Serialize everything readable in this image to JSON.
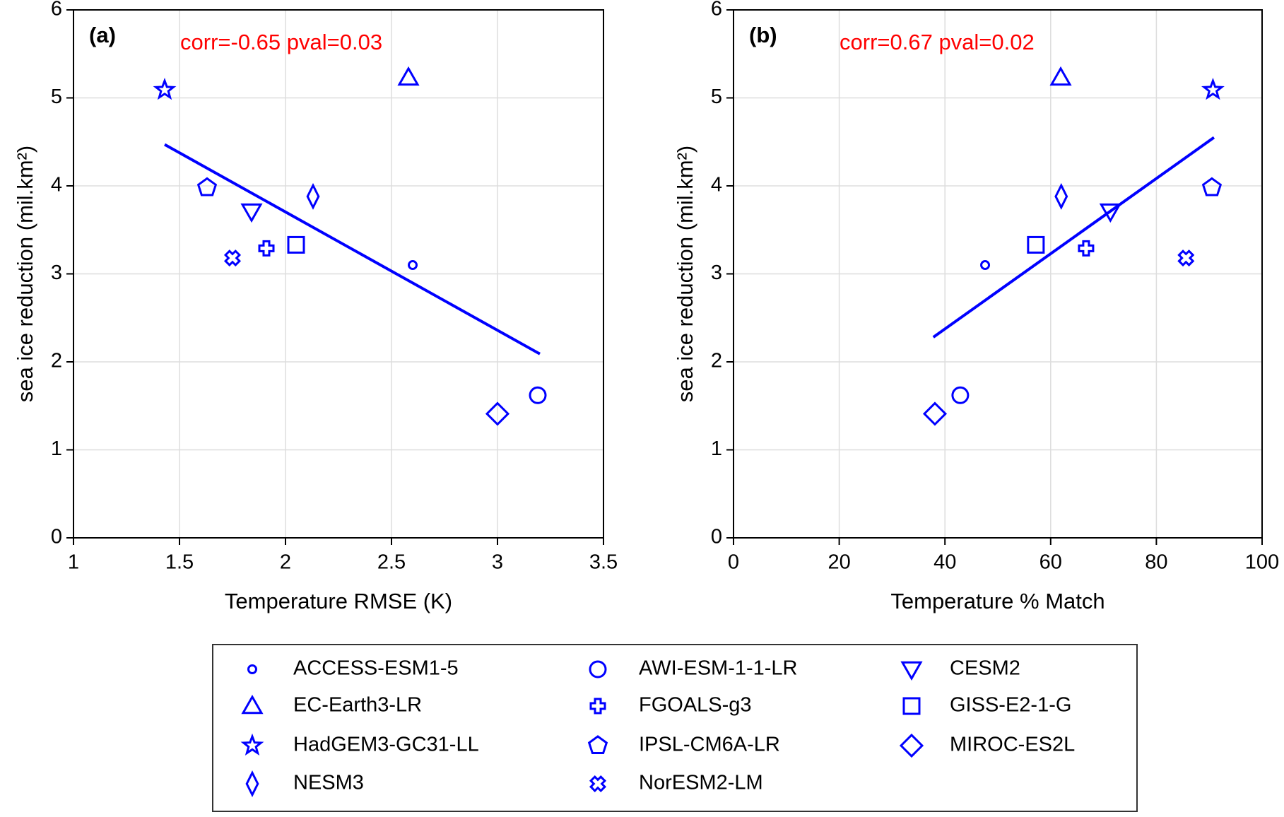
{
  "chart_data": [
    {
      "type": "scatter",
      "panel_label": "(a)",
      "annotation": "corr=-0.65  pval=0.03",
      "xlabel": "Temperature RMSE (K)",
      "ylabel": "sea ice reduction (mil.km²)",
      "xlim": [
        1,
        3.5
      ],
      "xticks": [
        1,
        1.5,
        2,
        2.5,
        3,
        3.5
      ],
      "ylim": [
        0,
        6
      ],
      "yticks": [
        0,
        1,
        2,
        3,
        4,
        5,
        6
      ],
      "grid": true,
      "trendline": {
        "color": "#0000ff",
        "x": [
          1.43,
          3.2
        ],
        "values": [
          4.47,
          2.09
        ]
      },
      "series": [
        {
          "name": "ACCESS-ESM1-5",
          "color": "#0000ff",
          "marker": "small-circle",
          "x": [
            2.6
          ],
          "values": [
            3.1
          ]
        },
        {
          "name": "AWI-ESM-1-1-LR",
          "color": "#0000ff",
          "marker": "circle",
          "x": [
            3.19
          ],
          "values": [
            1.62
          ]
        },
        {
          "name": "CESM2",
          "color": "#0000ff",
          "marker": "triangle-down",
          "x": [
            1.84
          ],
          "values": [
            3.71
          ]
        },
        {
          "name": "EC-Earth3-LR",
          "color": "#0000ff",
          "marker": "triangle-up",
          "x": [
            2.58
          ],
          "values": [
            5.23
          ]
        },
        {
          "name": "FGOALS-g3",
          "color": "#0000ff",
          "marker": "plus",
          "x": [
            1.91
          ],
          "values": [
            3.29
          ]
        },
        {
          "name": "GISS-E2-1-G",
          "color": "#0000ff",
          "marker": "square",
          "x": [
            2.05
          ],
          "values": [
            3.33
          ]
        },
        {
          "name": "HadGEM3-GC31-LL",
          "color": "#0000ff",
          "marker": "star",
          "x": [
            1.43
          ],
          "values": [
            5.09
          ]
        },
        {
          "name": "IPSL-CM6A-LR",
          "color": "#0000ff",
          "marker": "pentagon",
          "x": [
            1.63
          ],
          "values": [
            3.98
          ]
        },
        {
          "name": "MIROC-ES2L",
          "color": "#0000ff",
          "marker": "diamond",
          "x": [
            3.0
          ],
          "values": [
            1.41
          ]
        },
        {
          "name": "NESM3",
          "color": "#0000ff",
          "marker": "thin-diamond",
          "x": [
            2.13
          ],
          "values": [
            3.88
          ]
        },
        {
          "name": "NorESM2-LM",
          "color": "#0000ff",
          "marker": "x-cross",
          "x": [
            1.75
          ],
          "values": [
            3.18
          ]
        }
      ]
    },
    {
      "type": "scatter",
      "panel_label": "(b)",
      "annotation": "corr=0.67  pval=0.02",
      "xlabel": "Temperature % Match",
      "ylabel": "sea ice reduction (mil.km²)",
      "xlim": [
        0,
        100
      ],
      "xticks": [
        0,
        20,
        40,
        60,
        80,
        100
      ],
      "ylim": [
        0,
        6
      ],
      "yticks": [
        0,
        1,
        2,
        3,
        4,
        5,
        6
      ],
      "grid": true,
      "trendline": {
        "color": "#0000ff",
        "x": [
          37.8,
          90.9
        ],
        "values": [
          2.28,
          4.55
        ]
      },
      "series": [
        {
          "name": "ACCESS-ESM1-5",
          "color": "#0000ff",
          "marker": "small-circle",
          "x": [
            47.6
          ],
          "values": [
            3.1
          ]
        },
        {
          "name": "AWI-ESM-1-1-LR",
          "color": "#0000ff",
          "marker": "circle",
          "x": [
            42.9
          ],
          "values": [
            1.62
          ]
        },
        {
          "name": "CESM2",
          "color": "#0000ff",
          "marker": "triangle-down",
          "x": [
            71.3
          ],
          "values": [
            3.71
          ]
        },
        {
          "name": "EC-Earth3-LR",
          "color": "#0000ff",
          "marker": "triangle-up",
          "x": [
            61.9
          ],
          "values": [
            5.23
          ]
        },
        {
          "name": "FGOALS-g3",
          "color": "#0000ff",
          "marker": "plus",
          "x": [
            66.7
          ],
          "values": [
            3.29
          ]
        },
        {
          "name": "GISS-E2-1-G",
          "color": "#0000ff",
          "marker": "square",
          "x": [
            57.2
          ],
          "values": [
            3.33
          ]
        },
        {
          "name": "HadGEM3-GC31-LL",
          "color": "#0000ff",
          "marker": "star",
          "x": [
            90.7
          ],
          "values": [
            5.09
          ]
        },
        {
          "name": "IPSL-CM6A-LR",
          "color": "#0000ff",
          "marker": "pentagon",
          "x": [
            90.5
          ],
          "values": [
            3.98
          ]
        },
        {
          "name": "MIROC-ES2L",
          "color": "#0000ff",
          "marker": "diamond",
          "x": [
            38.1
          ],
          "values": [
            1.41
          ]
        },
        {
          "name": "NESM3",
          "color": "#0000ff",
          "marker": "thin-diamond",
          "x": [
            62.0
          ],
          "values": [
            3.88
          ]
        },
        {
          "name": "NorESM2-LM",
          "color": "#0000ff",
          "marker": "x-cross",
          "x": [
            85.6
          ],
          "values": [
            3.18
          ]
        }
      ]
    }
  ]
}
